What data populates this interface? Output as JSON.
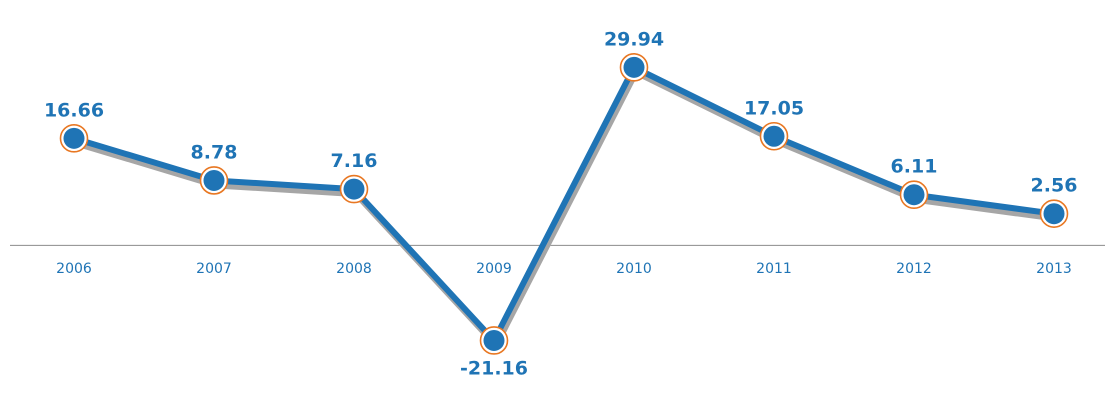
{
  "chart_data": {
    "type": "line",
    "categories": [
      "2006",
      "2007",
      "2008",
      "2009",
      "2010",
      "2011",
      "2012",
      "2013"
    ],
    "values": [
      16.66,
      8.78,
      7.16,
      -21.16,
      29.94,
      17.05,
      6.11,
      2.56
    ],
    "value_labels": [
      "16.66",
      "8.78",
      "7.16",
      "-21.16",
      "29.94",
      "17.05",
      "6.11",
      "2.56"
    ],
    "title": "",
    "xlabel": "",
    "ylabel": "",
    "ylim": [
      -25,
      33
    ],
    "grid": false,
    "legend": "none",
    "colors": {
      "line": "#1f74b5",
      "shadow": "#a6a6a6",
      "marker_fill": "#1f74b5",
      "marker_ring": "#ffffff",
      "marker_outline": "#e87722",
      "label": "#1f74b5",
      "axis": "#8c8c8c"
    }
  }
}
